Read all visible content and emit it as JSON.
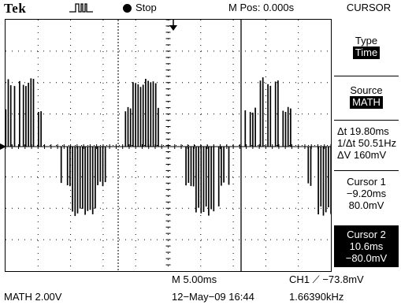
{
  "header": {
    "brand": "Tek",
    "trigger_icon": "acquire-pulse-icon",
    "run_state": "Stop",
    "mpos": "M Pos: 0.000s",
    "menu_title": "CURSOR"
  },
  "side_menu": {
    "type_label": "Type",
    "type_value": "Time",
    "source_label": "Source",
    "source_value": "MATH",
    "delta_t": "Δt 19.80ms",
    "inv_delta_t": "1/Δt 50.51Hz",
    "delta_v": "ΔV 160mV",
    "cursor1_label": "Cursor 1",
    "cursor1_time": "−9.20ms",
    "cursor1_volt": "80.0mV",
    "cursor2_label": "Cursor 2",
    "cursor2_time": "10.6ms",
    "cursor2_volt": "−80.0mV"
  },
  "status": {
    "timebase": "M 5.00ms",
    "trigger": "CH1 ⟋ −73.8mV",
    "math_scale": "MATH 2.00V",
    "datetime": "12−May−09 16:44",
    "frequency": "1.66390kHz"
  },
  "colors": {
    "trace": "#000000",
    "grid": "#000000",
    "background": "#ffffff"
  }
}
